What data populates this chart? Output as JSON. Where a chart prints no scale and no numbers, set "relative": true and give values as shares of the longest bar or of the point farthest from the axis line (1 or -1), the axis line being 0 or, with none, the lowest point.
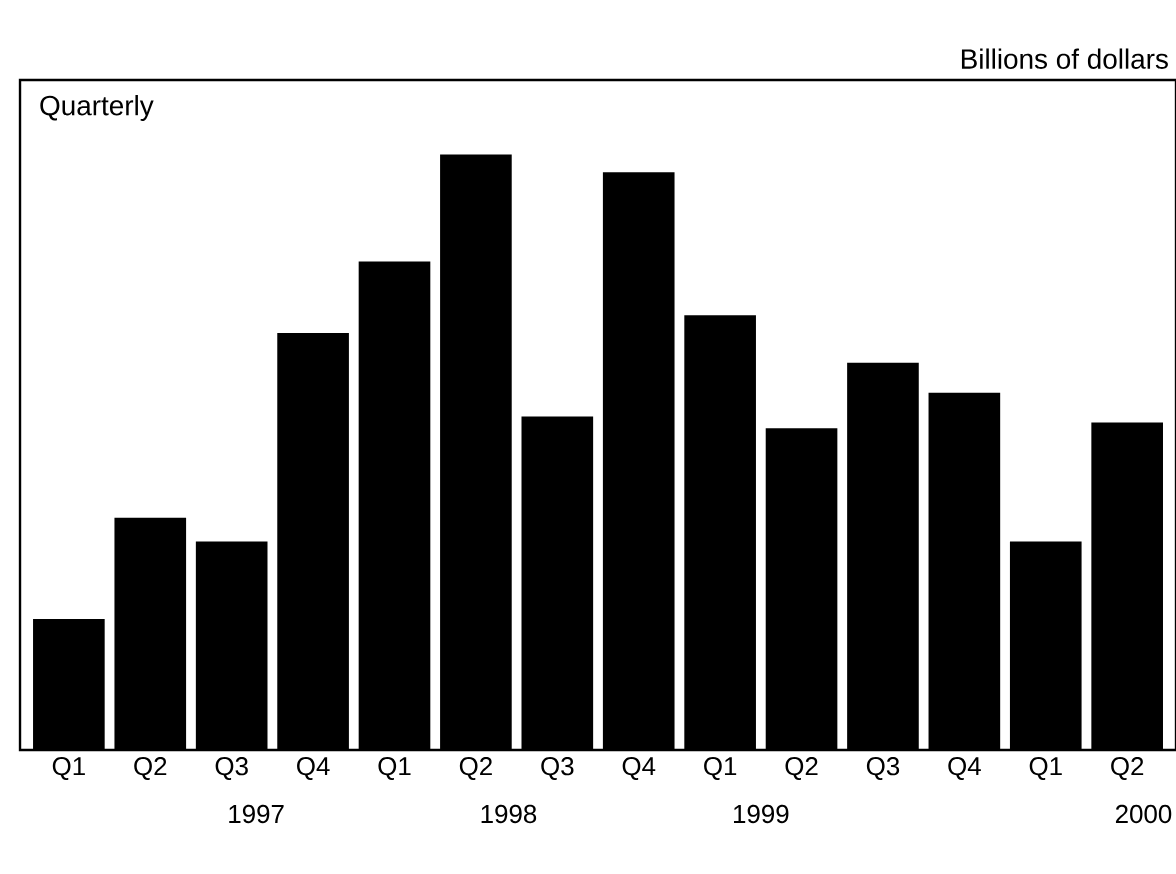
{
  "chart_data": {
    "type": "bar",
    "subtitle": "Quarterly",
    "ylabel": "Billions of dollars",
    "relative": true,
    "color": "#000000",
    "categories": [
      "Q1",
      "Q2",
      "Q3",
      "Q4",
      "Q1",
      "Q2",
      "Q3",
      "Q4",
      "Q1",
      "Q2",
      "Q3",
      "Q4",
      "Q1",
      "Q2"
    ],
    "values": [
      0.22,
      0.39,
      0.35,
      0.7,
      0.82,
      1.0,
      0.56,
      0.97,
      0.73,
      0.54,
      0.65,
      0.6,
      0.35,
      0.55
    ],
    "annotations": [
      "1997",
      "1998",
      "1999",
      "2000"
    ]
  }
}
